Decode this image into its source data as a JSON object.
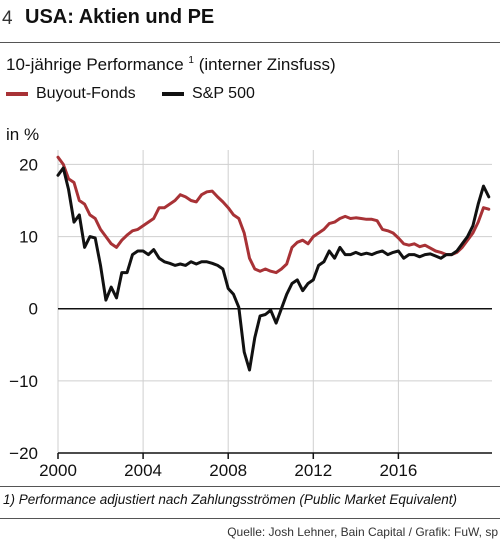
{
  "header": {
    "number": "4",
    "title": "USA: Aktien und PE",
    "subtitle": "10-jährige Performance",
    "subtitle_sup": "1",
    "subtitle_rest": "(interner Zinsfuss)"
  },
  "footnote": "1) Performance adjustiert nach Zahlungsströmen (Public Market Equivalent)",
  "source": "Quelle: Josh Lehner, Bain Capital / Grafik: FuW, sp",
  "chart_data": {
    "type": "line",
    "ylabel": "in %",
    "ylim": [
      -20,
      22
    ],
    "xlim": [
      2000,
      2020.4
    ],
    "xticks": [
      2000,
      2004,
      2008,
      2012,
      2016
    ],
    "yticks": [
      20,
      10,
      0,
      -10,
      -20
    ],
    "ytick_labels": [
      "20",
      "10",
      "0",
      "−10",
      "−20"
    ],
    "legend_position": "top-left",
    "grid": true,
    "series": [
      {
        "name": "Buyout-Fonds",
        "color": "#a83236",
        "x": [
          2000.0,
          2000.25,
          2000.5,
          2000.75,
          2001.0,
          2001.25,
          2001.5,
          2001.75,
          2002.0,
          2002.25,
          2002.5,
          2002.75,
          2003.0,
          2003.25,
          2003.5,
          2003.75,
          2004.0,
          2004.25,
          2004.5,
          2004.75,
          2005.0,
          2005.25,
          2005.5,
          2005.75,
          2006.0,
          2006.25,
          2006.5,
          2006.75,
          2007.0,
          2007.25,
          2007.5,
          2007.75,
          2008.0,
          2008.25,
          2008.5,
          2008.75,
          2009.0,
          2009.25,
          2009.5,
          2009.75,
          2010.0,
          2010.25,
          2010.5,
          2010.75,
          2011.0,
          2011.25,
          2011.5,
          2011.75,
          2012.0,
          2012.25,
          2012.5,
          2012.75,
          2013.0,
          2013.25,
          2013.5,
          2013.75,
          2014.0,
          2014.25,
          2014.5,
          2014.75,
          2015.0,
          2015.25,
          2015.5,
          2015.75,
          2016.0,
          2016.25,
          2016.5,
          2016.75,
          2017.0,
          2017.25,
          2017.5,
          2017.75,
          2018.0,
          2018.25,
          2018.5,
          2018.75,
          2019.0,
          2019.25,
          2019.5,
          2019.75,
          2020.0,
          2020.25
        ],
        "y": [
          21.0,
          20.0,
          18.0,
          17.5,
          15.0,
          14.5,
          13.0,
          12.5,
          11.0,
          10.0,
          9.0,
          8.5,
          9.5,
          10.2,
          10.8,
          11.0,
          11.5,
          12.0,
          12.5,
          14.0,
          14.0,
          14.5,
          15.0,
          15.8,
          15.5,
          15.0,
          14.8,
          15.8,
          16.2,
          16.3,
          15.5,
          14.8,
          14.0,
          13.0,
          12.5,
          10.5,
          7.0,
          5.5,
          5.2,
          5.5,
          5.2,
          5.0,
          5.5,
          6.2,
          8.5,
          9.2,
          9.5,
          9.0,
          10.0,
          10.5,
          11.0,
          11.8,
          12.0,
          12.5,
          12.8,
          12.5,
          12.6,
          12.5,
          12.4,
          12.4,
          12.2,
          11.0,
          10.8,
          10.5,
          9.8,
          9.0,
          8.8,
          9.0,
          8.6,
          8.8,
          8.4,
          8.0,
          7.8,
          7.5,
          7.5,
          7.8,
          8.5,
          9.5,
          10.5,
          12.0,
          14.0,
          13.8
        ]
      },
      {
        "name": "S&P 500",
        "color": "#111111",
        "x": [
          2000.0,
          2000.25,
          2000.5,
          2000.75,
          2001.0,
          2001.25,
          2001.5,
          2001.75,
          2002.0,
          2002.25,
          2002.5,
          2002.75,
          2003.0,
          2003.25,
          2003.5,
          2003.75,
          2004.0,
          2004.25,
          2004.5,
          2004.75,
          2005.0,
          2005.25,
          2005.5,
          2005.75,
          2006.0,
          2006.25,
          2006.5,
          2006.75,
          2007.0,
          2007.25,
          2007.5,
          2007.75,
          2008.0,
          2008.25,
          2008.5,
          2008.75,
          2009.0,
          2009.25,
          2009.5,
          2009.75,
          2010.0,
          2010.25,
          2010.5,
          2010.75,
          2011.0,
          2011.25,
          2011.5,
          2011.75,
          2012.0,
          2012.25,
          2012.5,
          2012.75,
          2013.0,
          2013.25,
          2013.5,
          2013.75,
          2014.0,
          2014.25,
          2014.5,
          2014.75,
          2015.0,
          2015.25,
          2015.5,
          2015.75,
          2016.0,
          2016.25,
          2016.5,
          2016.75,
          2017.0,
          2017.25,
          2017.5,
          2017.75,
          2018.0,
          2018.25,
          2018.5,
          2018.75,
          2019.0,
          2019.25,
          2019.5,
          2019.75,
          2020.0,
          2020.25
        ],
        "y": [
          18.5,
          19.5,
          16.5,
          12.0,
          13.0,
          8.5,
          10.0,
          9.8,
          6.0,
          1.2,
          3.0,
          1.5,
          5.0,
          5.0,
          7.5,
          8.0,
          8.0,
          7.5,
          8.2,
          7.0,
          6.5,
          6.3,
          6.0,
          6.2,
          6.0,
          6.5,
          6.2,
          6.5,
          6.5,
          6.3,
          6.0,
          5.5,
          2.8,
          2.0,
          0.2,
          -6.0,
          -8.5,
          -4.0,
          -1.0,
          -0.8,
          -0.2,
          -2.0,
          0.0,
          2.0,
          3.5,
          4.0,
          2.5,
          3.5,
          4.0,
          6.0,
          6.5,
          8.0,
          7.0,
          8.5,
          7.5,
          7.5,
          7.8,
          7.5,
          7.7,
          7.5,
          7.8,
          8.0,
          7.5,
          7.8,
          8.0,
          7.0,
          7.5,
          7.5,
          7.2,
          7.5,
          7.6,
          7.3,
          7.0,
          7.5,
          7.5,
          8.0,
          9.0,
          10.0,
          11.5,
          14.5,
          17.0,
          15.5
        ]
      }
    ]
  }
}
